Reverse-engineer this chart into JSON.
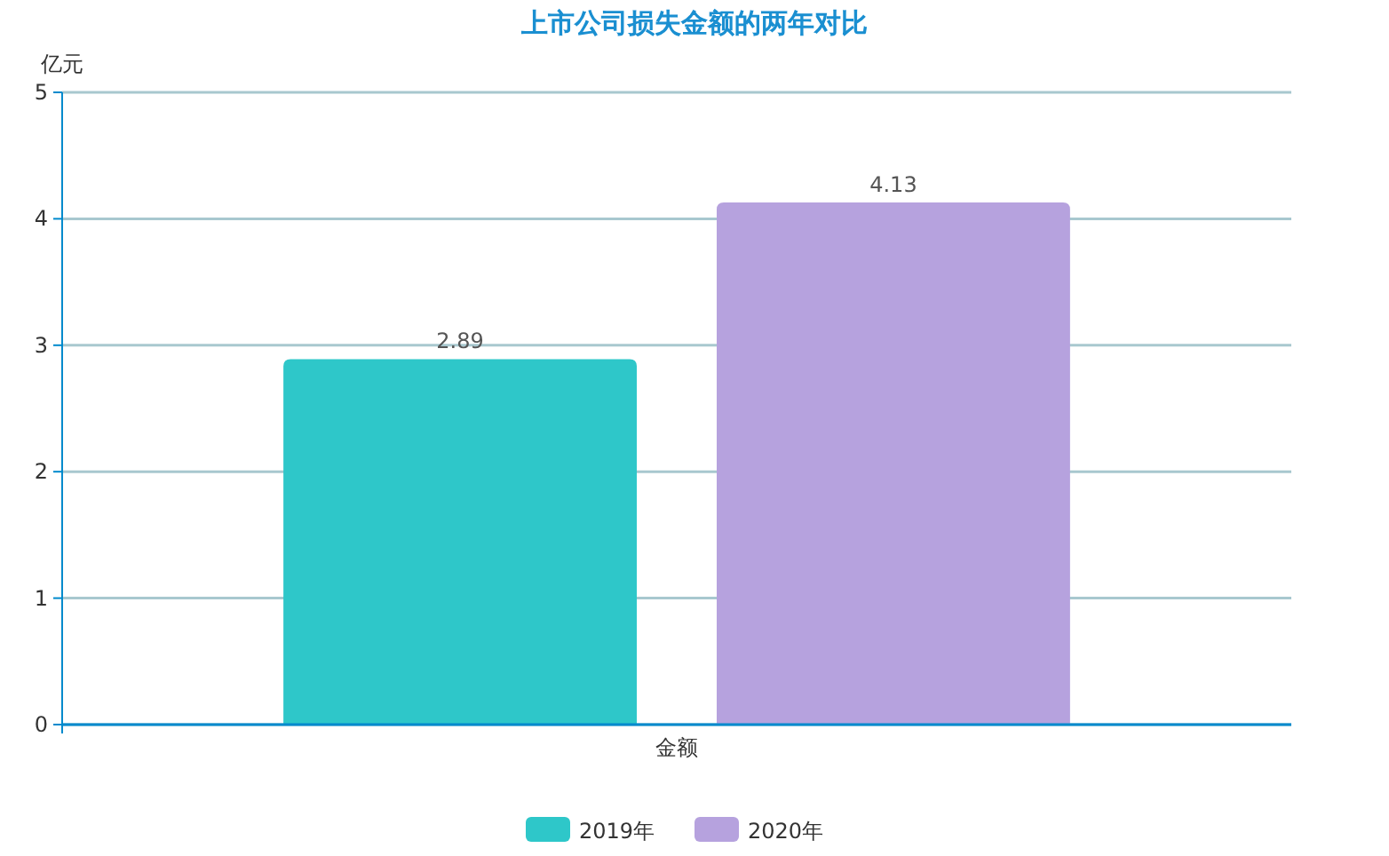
{
  "chart_data": {
    "type": "bar",
    "title": "上市公司损失金额的两年对比",
    "ylabel": "亿元",
    "categories": [
      "金额"
    ],
    "series": [
      {
        "name": "2019年",
        "color": "#2ec7c9",
        "values": [
          2.89
        ]
      },
      {
        "name": "2020年",
        "color": "#b6a2de",
        "values": [
          4.13
        ]
      }
    ],
    "ylim": [
      0,
      5
    ],
    "yticks": [
      0,
      1,
      2,
      3,
      4,
      5
    ],
    "grid": "y",
    "legend": "bottom",
    "data_labels": true
  }
}
